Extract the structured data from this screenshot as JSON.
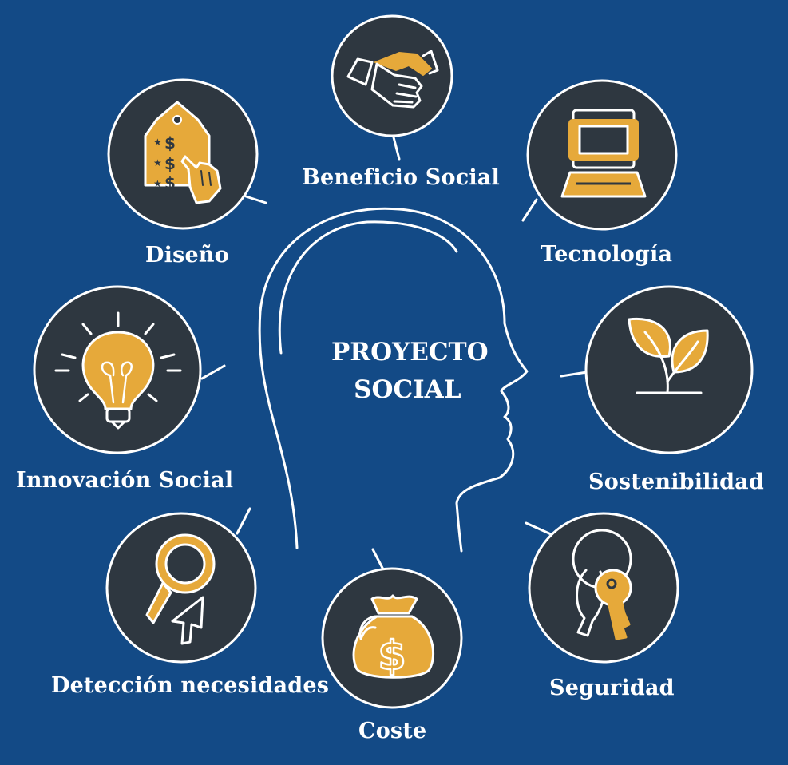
{
  "colors": {
    "background": "#134a86",
    "circle_fill": "#2e3740",
    "stroke": "#ffffff",
    "accent": "#e6a93a"
  },
  "center": {
    "line1": "PROYECTO",
    "line2": "SOCIAL"
  },
  "nodes": [
    {
      "id": "beneficio",
      "label": "Beneficio Social",
      "icon": "handshake-icon"
    },
    {
      "id": "tecnologia",
      "label": "Tecnología",
      "icon": "computer-icon"
    },
    {
      "id": "sostenibilidad",
      "label": "Sostenibilidad",
      "icon": "sprout-icon"
    },
    {
      "id": "seguridad",
      "label": "Seguridad",
      "icon": "keys-icon"
    },
    {
      "id": "coste",
      "label": "Coste",
      "icon": "money-bag-icon"
    },
    {
      "id": "deteccion",
      "label": "Detección necesidades",
      "icon": "magnifier-icon"
    },
    {
      "id": "innovacion",
      "label": "Innovación Social",
      "icon": "lightbulb-icon"
    },
    {
      "id": "diseno",
      "label": "Diseño",
      "icon": "price-tag-icon"
    }
  ]
}
